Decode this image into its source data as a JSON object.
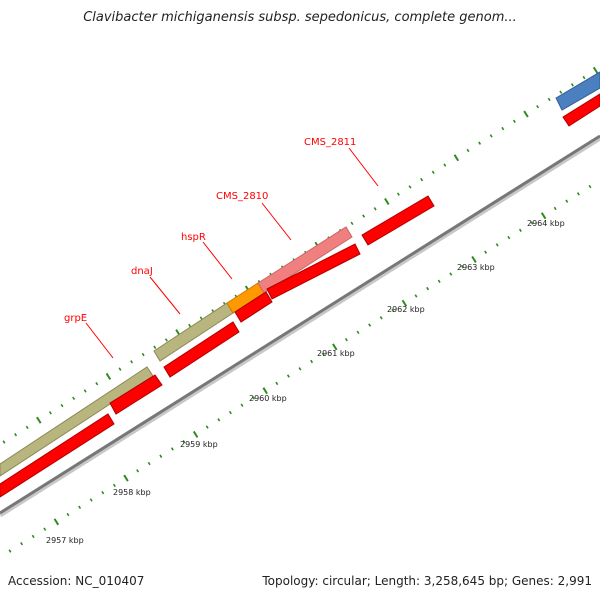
{
  "title": "Clavibacter michiganensis subsp. sepedonicus, complete genom...",
  "footer": {
    "accession": "Accession: NC_010407",
    "summary": "Topology: circular; Length: 3,258,645 bp; Genes: 2,991"
  },
  "colors": {
    "tick": "#2f8a1f",
    "backbone": "#888888",
    "cds_red": "#ff0000",
    "grpE_dnaJ": "#b9b57e",
    "hspR": "#ff9900",
    "CMS_2810": "#f08080",
    "blue_gene": "#4a7fc0",
    "label_red": "#ff0000"
  },
  "kbp_labels": [
    "2957 kbp",
    "2958 kbp",
    "2959 kbp",
    "2960 kbp",
    "2961 kbp",
    "2962 kbp",
    "2963 kbp",
    "2964 kbp"
  ],
  "gene_labels": [
    "grpE",
    "dnaJ",
    "hspR",
    "CMS_2810",
    "CMS_2811"
  ]
}
